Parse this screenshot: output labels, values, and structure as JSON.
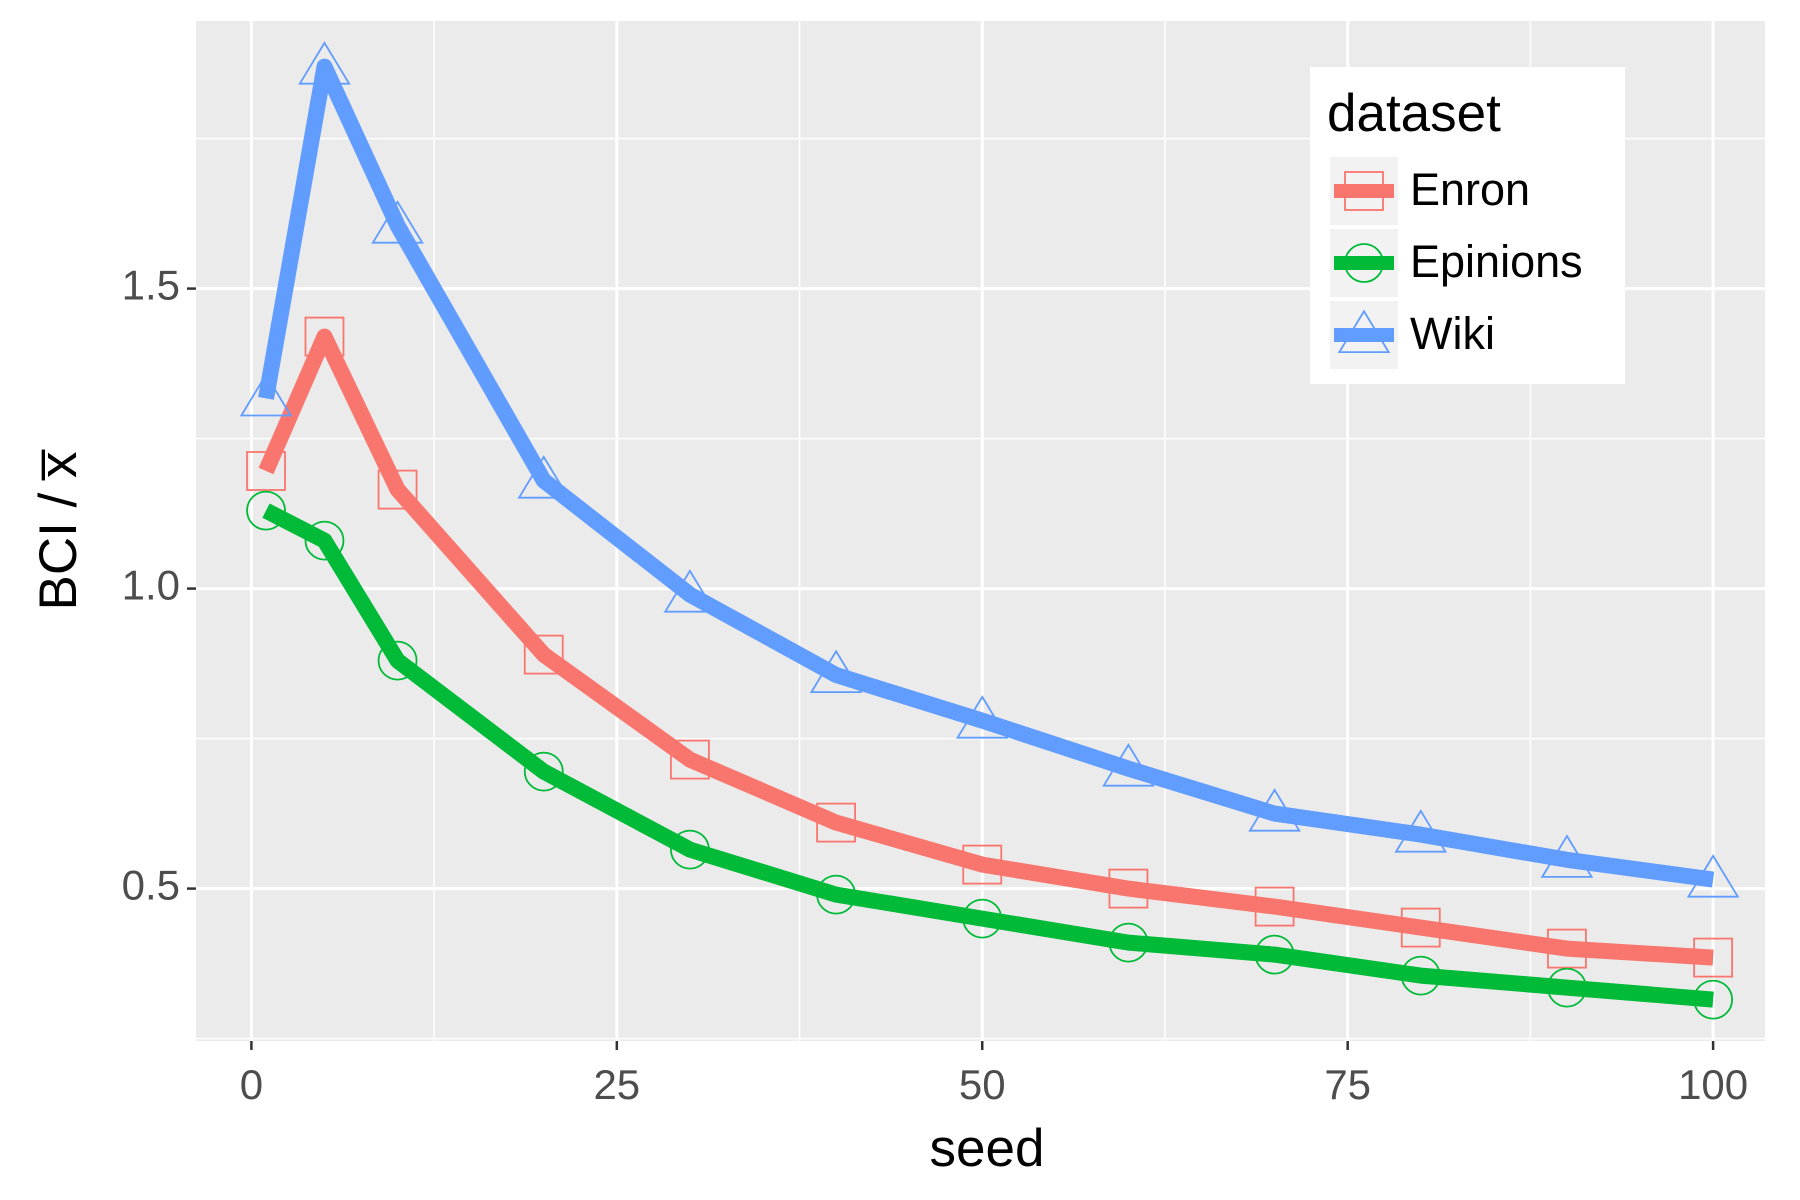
{
  "chart_data": {
    "type": "line",
    "x_label": "seed",
    "y_label": "BCI / x̅",
    "x": [
      1,
      5,
      10,
      20,
      30,
      40,
      50,
      60,
      70,
      80,
      90,
      100
    ],
    "series": [
      {
        "name": "Enron",
        "color": "#F8766D",
        "marker": "square",
        "values": [
          1.196,
          1.42,
          1.165,
          0.89,
          0.715,
          0.61,
          0.54,
          0.5,
          0.47,
          0.435,
          0.4,
          0.385
        ]
      },
      {
        "name": "Epinions",
        "color": "#00BA38",
        "marker": "circle",
        "values": [
          1.13,
          1.08,
          0.88,
          0.695,
          0.565,
          0.49,
          0.45,
          0.41,
          0.39,
          0.355,
          0.335,
          0.315
        ]
      },
      {
        "name": "Wiki",
        "color": "#619CFF",
        "marker": "triangle",
        "values": [
          1.317,
          1.87,
          1.605,
          1.18,
          0.99,
          0.856,
          0.78,
          0.7,
          0.625,
          0.59,
          0.548,
          0.515
        ]
      }
    ],
    "xlim": [
      -3.79,
      103.55
    ],
    "xticks": [
      0,
      25,
      50,
      75,
      100
    ],
    "xticks_minor": [
      12.5,
      37.5,
      62.5,
      87.5
    ],
    "ylim": [
      0.246,
      1.946
    ],
    "yticks": [
      {
        "value": 0.5,
        "label": "0.5"
      },
      {
        "value": 1.0,
        "label": "1.0"
      },
      {
        "value": 1.5,
        "label": "1.5"
      }
    ],
    "yticks_minor": [
      0.25,
      0.75,
      1.25,
      1.75
    ],
    "grid": true,
    "legend_title": "dataset",
    "legend_position": "top-right"
  }
}
